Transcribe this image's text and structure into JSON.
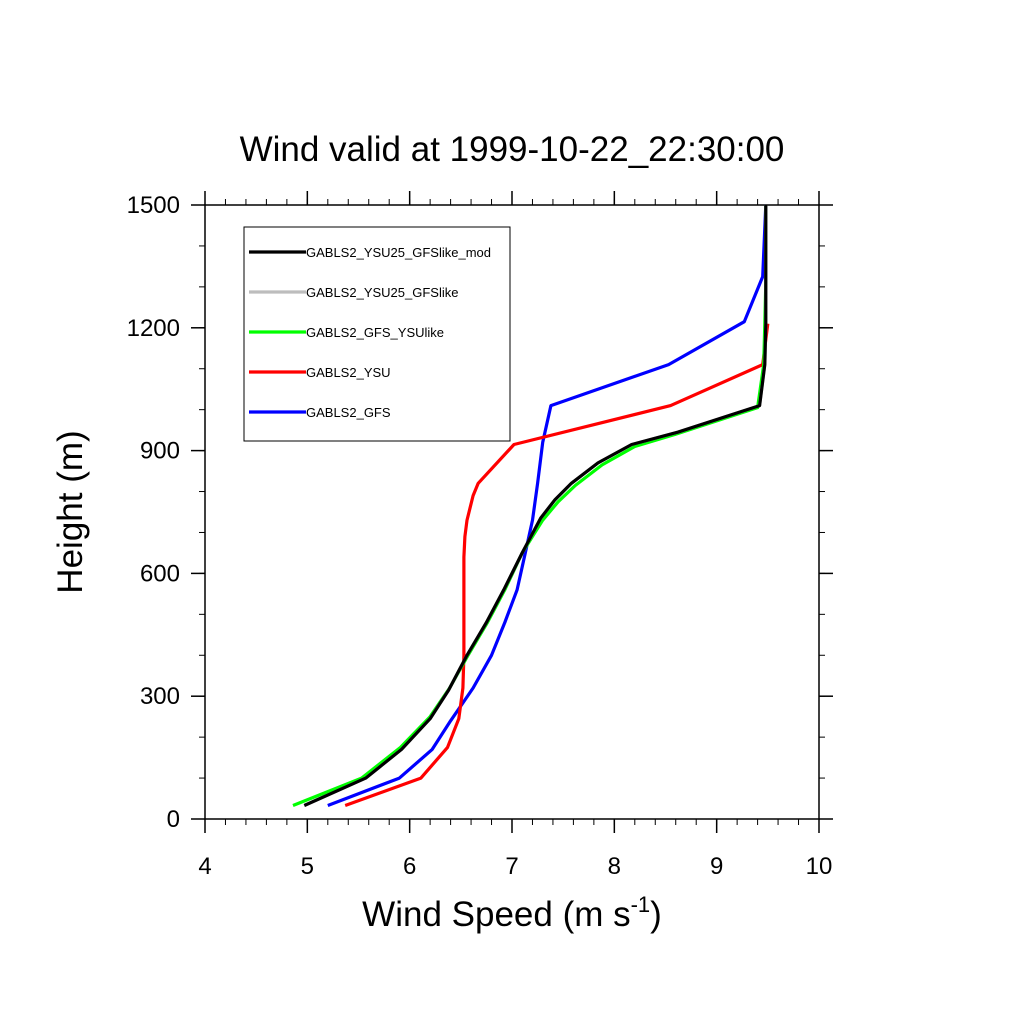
{
  "chart_data": {
    "type": "line",
    "title": "Wind valid at 1999-10-22_22:30:00",
    "xlabel": "Wind Speed (m s",
    "xlabel_sup": "-1",
    "xlabel_close": ")",
    "ylabel": "Height (m)",
    "xlim": [
      4,
      10
    ],
    "ylim": [
      0,
      1500
    ],
    "xticks": [
      4,
      5,
      6,
      7,
      8,
      9,
      10
    ],
    "yticks": [
      0,
      300,
      600,
      900,
      1200,
      1500
    ],
    "grid": false,
    "legend_position": "top-left",
    "series": [
      {
        "name": "GABLS2_YSU25_GFSlike_mod",
        "color": "#000000",
        "x": [
          4.97,
          5.57,
          5.92,
          6.2,
          6.38,
          6.56,
          6.75,
          6.92,
          7.1,
          7.28,
          7.42,
          7.58,
          7.84,
          8.17,
          8.62,
          9.42,
          9.47,
          9.48,
          9.48,
          9.48
        ],
        "y": [
          33,
          100,
          170,
          245,
          315,
          400,
          480,
          560,
          650,
          735,
          780,
          820,
          870,
          915,
          945,
          1010,
          1110,
          1210,
          1310,
          1500
        ]
      },
      {
        "name": "GABLS2_YSU25_GFSlike",
        "color": "#bdbdbd",
        "x": [
          4.97,
          5.57,
          5.92,
          6.2,
          6.38,
          6.56,
          6.75,
          6.92,
          7.1,
          7.28,
          7.42,
          7.58,
          7.84,
          8.17,
          8.62,
          9.42,
          9.47,
          9.48,
          9.48,
          9.48
        ],
        "y": [
          33,
          100,
          170,
          245,
          315,
          400,
          480,
          560,
          650,
          735,
          780,
          820,
          870,
          915,
          945,
          1010,
          1110,
          1210,
          1310,
          1500
        ]
      },
      {
        "name": "GABLS2_GFS_YSUlike",
        "color": "#00ff00",
        "x": [
          4.86,
          5.53,
          5.91,
          6.2,
          6.39,
          6.57,
          6.76,
          6.93,
          7.1,
          7.3,
          7.45,
          7.62,
          7.88,
          8.2,
          8.6,
          9.4,
          9.46,
          9.47,
          9.48,
          9.48
        ],
        "y": [
          33,
          100,
          175,
          250,
          320,
          400,
          480,
          560,
          650,
          730,
          775,
          815,
          865,
          910,
          940,
          1005,
          1110,
          1210,
          1310,
          1500
        ]
      },
      {
        "name": "GABLS2_YSU",
        "color": "#ff0000",
        "x": [
          5.37,
          6.11,
          6.37,
          6.48,
          6.52,
          6.53,
          6.53,
          6.53,
          6.53,
          6.54,
          6.56,
          6.62,
          6.67,
          7.02,
          8.55,
          9.45,
          9.5
        ],
        "y": [
          33,
          100,
          175,
          245,
          320,
          400,
          480,
          560,
          640,
          690,
          730,
          790,
          820,
          915,
          1010,
          1110,
          1210
        ]
      },
      {
        "name": "GABLS2_GFS",
        "color": "#0000ff",
        "x": [
          5.2,
          5.9,
          6.22,
          6.4,
          6.62,
          6.8,
          6.93,
          7.05,
          7.13,
          7.2,
          7.25,
          7.3,
          7.38,
          8.53,
          9.27,
          9.45,
          9.48
        ],
        "y": [
          33,
          100,
          170,
          240,
          320,
          400,
          480,
          560,
          650,
          730,
          820,
          920,
          1010,
          1110,
          1215,
          1325,
          1500
        ]
      }
    ]
  }
}
